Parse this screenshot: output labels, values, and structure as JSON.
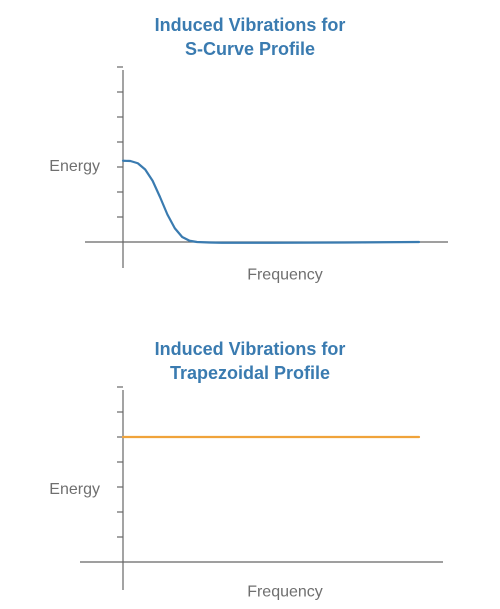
{
  "colors": {
    "axis": "#666666",
    "label": "#6f6f6f"
  },
  "chart_data": [
    {
      "type": "line",
      "title_lines": [
        "Induced Vibrations for",
        "S-Curve Profile"
      ],
      "title_color": "#3a7bb0",
      "xlabel": "Frequency",
      "ylabel": "Energy",
      "xlim": [
        0,
        12
      ],
      "ylim": [
        0,
        7
      ],
      "y_tick_count": 7,
      "grid": false,
      "series": [
        {
          "color": "#3a7bb0",
          "x": [
            0,
            0.3,
            0.6,
            0.9,
            1.2,
            1.5,
            1.8,
            2.1,
            2.4,
            2.7,
            3.0,
            3.5,
            4.0,
            6.0,
            9.0,
            12.0
          ],
          "y": [
            3.25,
            3.24,
            3.15,
            2.9,
            2.45,
            1.8,
            1.1,
            0.55,
            0.2,
            0.05,
            0.0,
            -0.02,
            -0.03,
            -0.03,
            -0.02,
            0.0
          ]
        }
      ]
    },
    {
      "type": "line",
      "title_lines": [
        "Induced Vibrations for",
        "Trapezoidal Profile"
      ],
      "title_color": "#3a7bb0",
      "xlabel": "Frequency",
      "ylabel": "Energy",
      "xlim": [
        0,
        12
      ],
      "ylim": [
        0,
        7
      ],
      "y_tick_count": 7,
      "grid": false,
      "series": [
        {
          "color": "#f0a33a",
          "x": [
            0,
            12
          ],
          "y": [
            5.0,
            5.0
          ]
        }
      ]
    }
  ]
}
